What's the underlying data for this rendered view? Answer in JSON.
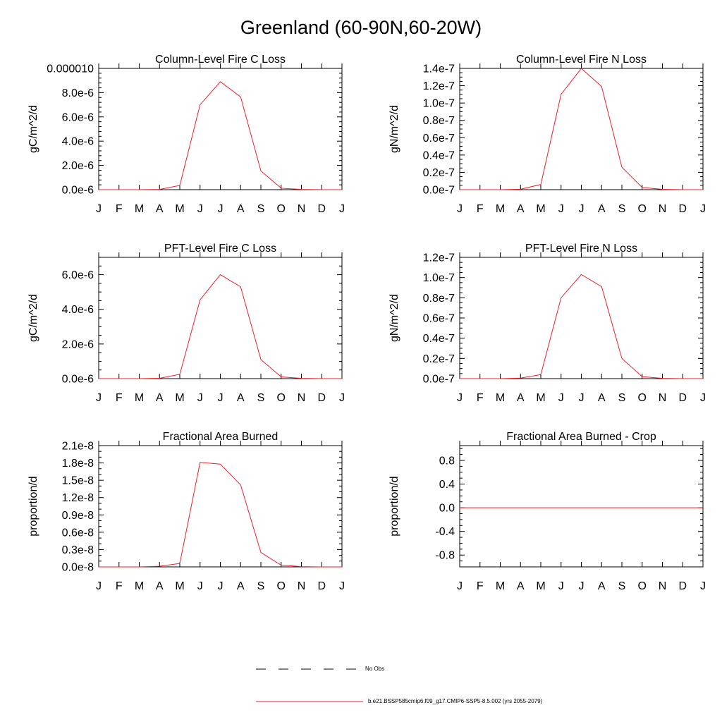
{
  "page_title": "Greenland (60-90N,60-20W)",
  "legend": {
    "obs_label": "No Obs",
    "model_label": "b.e21.BSSP585cmip6.f09_g17.CMIP6-SSP5-8.5.002 (yrs 2055-2079)",
    "model_color": "#e8202a",
    "obs_color": "#000000"
  },
  "chart_data": [
    {
      "type": "line",
      "title": "Column-Level Fire C Loss",
      "ylabel": "gC/m^2/d",
      "xlabel": "",
      "x": [
        "J",
        "F",
        "M",
        "A",
        "M",
        "J",
        "J",
        "A",
        "S",
        "O",
        "N",
        "D",
        "J"
      ],
      "ylim": [
        0,
        1e-05
      ],
      "yticks": [
        0,
        2e-06,
        4e-06,
        6e-06,
        8e-06,
        1e-05
      ],
      "ytick_labels": [
        "0.0e-6",
        "2.0e-6",
        "4.0e-6",
        "6.0e-6",
        "8.0e-6",
        "0.000010"
      ],
      "yminor": 5,
      "series": [
        {
          "values": [
            0,
            0,
            0,
            2e-08,
            3.5e-07,
            7e-06,
            8.9e-06,
            7.65e-06,
            1.55e-06,
            1.2e-07,
            2e-08,
            0,
            0
          ]
        }
      ]
    },
    {
      "type": "line",
      "title": "Column-Level Fire N Loss",
      "ylabel": "gN/m^2/d",
      "xlabel": "",
      "x": [
        "J",
        "F",
        "M",
        "A",
        "M",
        "J",
        "J",
        "A",
        "S",
        "O",
        "N",
        "D",
        "J"
      ],
      "ylim": [
        0,
        1.4e-07
      ],
      "yticks": [
        0,
        2e-08,
        4e-08,
        6e-08,
        8e-08,
        1e-07,
        1.2e-07,
        1.4e-07
      ],
      "ytick_labels": [
        "0.0e-7",
        "0.2e-7",
        "0.4e-7",
        "0.6e-7",
        "0.8e-7",
        "1.0e-7",
        "1.2e-7",
        "1.4e-7"
      ],
      "yminor": 4,
      "series": [
        {
          "values": [
            0,
            0,
            0,
            5e-10,
            6e-09,
            1.1e-07,
            1.4e-07,
            1.19e-07,
            2.6e-08,
            2.5e-09,
            4e-10,
            0,
            0
          ]
        }
      ]
    },
    {
      "type": "line",
      "title": "PFT-Level Fire C Loss",
      "ylabel": "gC/m^2/d",
      "xlabel": "",
      "x": [
        "J",
        "F",
        "M",
        "A",
        "M",
        "J",
        "J",
        "A",
        "S",
        "O",
        "N",
        "D",
        "J"
      ],
      "ylim": [
        0,
        7e-06
      ],
      "yticks": [
        0,
        2e-06,
        4e-06,
        6e-06
      ],
      "ytick_labels": [
        "0.0e-6",
        "2.0e-6",
        "4.0e-6",
        "6.0e-6"
      ],
      "yminor": 4,
      "series": [
        {
          "values": [
            0,
            0,
            0,
            2e-08,
            2.5e-07,
            4.55e-06,
            6e-06,
            5.3e-06,
            1.1e-06,
            1e-07,
            1.5e-08,
            0,
            0
          ]
        }
      ]
    },
    {
      "type": "line",
      "title": "PFT-Level Fire N Loss",
      "ylabel": "gN/m^2/d",
      "xlabel": "",
      "x": [
        "J",
        "F",
        "M",
        "A",
        "M",
        "J",
        "J",
        "A",
        "S",
        "O",
        "N",
        "D",
        "J"
      ],
      "ylim": [
        0,
        1.2e-07
      ],
      "yticks": [
        0,
        2e-08,
        4e-08,
        6e-08,
        8e-08,
        1e-07,
        1.2e-07
      ],
      "ytick_labels": [
        "0.0e-7",
        "0.2e-7",
        "0.4e-7",
        "0.6e-7",
        "0.8e-7",
        "1.0e-7",
        "1.2e-7"
      ],
      "yminor": 4,
      "series": [
        {
          "values": [
            0,
            0,
            0,
            5e-10,
            4e-09,
            8e-08,
            1.03e-07,
            9.1e-08,
            2e-08,
            2e-09,
            3e-10,
            0,
            0
          ]
        }
      ]
    },
    {
      "type": "line",
      "title": "Fractional Area Burned",
      "ylabel": "proportion/d",
      "xlabel": "",
      "x": [
        "J",
        "F",
        "M",
        "A",
        "M",
        "J",
        "J",
        "A",
        "S",
        "O",
        "N",
        "D",
        "J"
      ],
      "ylim": [
        0,
        2.1e-08
      ],
      "yticks": [
        0,
        3e-09,
        6e-09,
        9e-09,
        1.2e-08,
        1.5e-08,
        1.8e-08,
        2.1e-08
      ],
      "ytick_labels": [
        "0.0e-8",
        "0.3e-8",
        "0.6e-8",
        "0.9e-8",
        "1.2e-8",
        "1.5e-8",
        "1.8e-8",
        "2.1e-8"
      ],
      "yminor": 3,
      "series": [
        {
          "values": [
            0,
            0,
            0,
            1e-10,
            6e-10,
            1.81e-08,
            1.78e-08,
            1.42e-08,
            2.5e-09,
            3e-10,
            5e-11,
            0,
            0
          ]
        }
      ]
    },
    {
      "type": "line",
      "title": "Fractional Area Burned - Crop",
      "ylabel": "proportion/d",
      "xlabel": "",
      "x": [
        "J",
        "F",
        "M",
        "A",
        "M",
        "J",
        "J",
        "A",
        "S",
        "O",
        "N",
        "D",
        "J"
      ],
      "ylim": [
        -1.0,
        1.05
      ],
      "yticks": [
        -0.8,
        -0.4,
        0.0,
        0.4,
        0.8
      ],
      "ytick_labels": [
        "-0.8",
        "-0.4",
        "0.0",
        "0.4",
        "0.8"
      ],
      "yminor": 4,
      "series": [
        {
          "values": [
            0,
            0,
            0,
            0,
            0,
            0,
            0,
            0,
            0,
            0,
            0,
            0,
            0
          ]
        }
      ]
    }
  ]
}
